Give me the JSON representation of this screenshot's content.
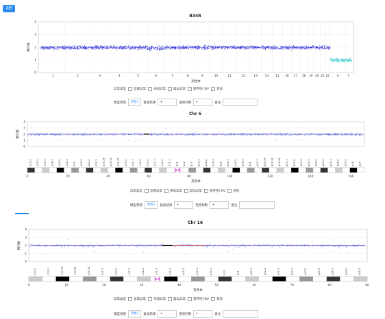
{
  "top_button": "返回",
  "genome": {
    "title": "B34R",
    "ylabel": "拷贝数",
    "xlabel": "染色体",
    "yticks": [
      "0",
      "1",
      "2",
      "3",
      "4"
    ],
    "chromosomes": [
      "1",
      "2",
      "3",
      "4",
      "5",
      "6",
      "7",
      "8",
      "9",
      "10",
      "11",
      "12",
      "13",
      "14",
      "15",
      "16",
      "17",
      "18",
      "19",
      "20",
      "21",
      "22",
      "X",
      "Y"
    ]
  },
  "chr6": {
    "title": "Chr 6",
    "ylabel": "拷贝数",
    "xlabel": "染色体",
    "yticks": [
      "0",
      "1",
      "2",
      "3",
      "4"
    ],
    "xticks": [
      "0",
      "20",
      "40",
      "60",
      "80",
      "100",
      "120",
      "140",
      "160"
    ],
    "bands": [
      "p25.3",
      "p25.2",
      "p25.1",
      "p24.3",
      "p24.2",
      "p24.1",
      "p23",
      "p22.3",
      "p22.2",
      "p22.1",
      "p21.33",
      "p21.32",
      "p21.31",
      "p21.2",
      "p21.1",
      "p12.3",
      "p12.2",
      "p12.1",
      "p11.2",
      "p11.1",
      "q11",
      "q12",
      "q13",
      "q14.1",
      "q14.2",
      "q14.3",
      "q15",
      "q16.1",
      "q16.2",
      "q16.3",
      "q21",
      "q22.1",
      "q22.31",
      "q22.32",
      "q22.33",
      "q23.1",
      "q23.2",
      "q23.3",
      "q24.1",
      "q24.2",
      "q24.3",
      "q25.1",
      "q25.2",
      "q25.3",
      "q26",
      "q27"
    ]
  },
  "chr16": {
    "title": "Chr 16",
    "ylabel": "拷贝数",
    "xlabel": "染色体",
    "yticks": [
      "0",
      "1",
      "2",
      "3",
      "4"
    ],
    "xticks": [
      "0",
      "10",
      "20",
      "30",
      "40",
      "50",
      "60",
      "70",
      "80",
      "90"
    ],
    "bands": [
      "p13.3",
      "p13.2",
      "p13.13",
      "p13.12",
      "p13.11",
      "p12.3",
      "p12.2",
      "p12.1",
      "p11.2",
      "p11.1",
      "q11.1",
      "q11.2",
      "q12.1",
      "q12.2",
      "q13",
      "q21",
      "q22.1",
      "q22.2",
      "q22.3",
      "q23.1",
      "q23.2",
      "q23.3",
      "q24.1",
      "q24.2",
      "q24.3"
    ]
  },
  "filters": {
    "type_label": "异常类型",
    "options": [
      "显著异常",
      "未知异常",
      "疑似异常",
      "遗传性CNV",
      "其他"
    ],
    "predict_label": "模型预测",
    "predict_value": "阴性1",
    "review_label": "复核结果",
    "review_value": "",
    "reject_label": "拒绝判断",
    "note_label": "备注"
  }
}
